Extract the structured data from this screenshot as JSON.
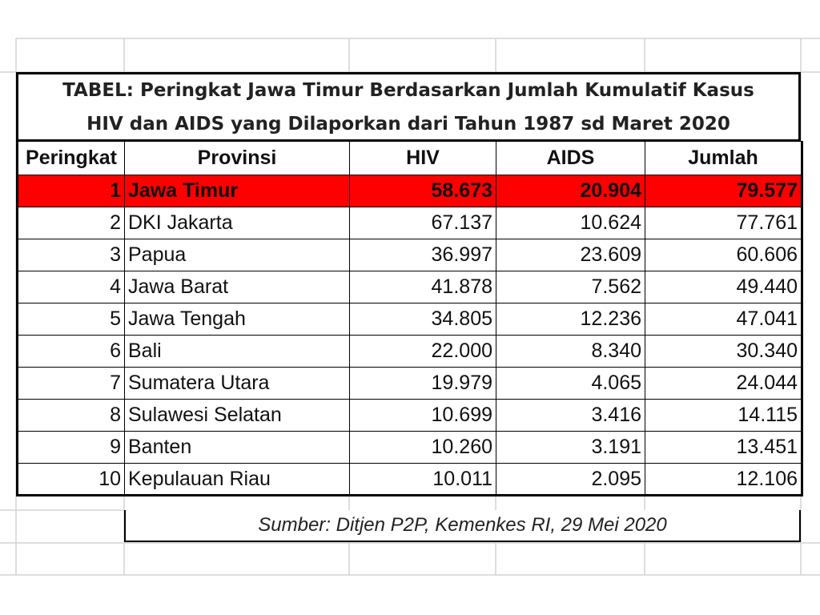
{
  "title": {
    "line1": "TABEL: Peringkat Jawa Timur Berdasarkan Jumlah Kumulatif Kasus",
    "line2": "HIV dan AIDS yang Dilaporkan dari Tahun 1987 sd Maret 2020"
  },
  "headers": [
    "Peringkat",
    "Provinsi",
    "HIV",
    "AIDS",
    "Jumlah"
  ],
  "rows": [
    {
      "rank": "1",
      "province": "Jawa Timur",
      "hiv": "58.673",
      "aids": "20.904",
      "total": "79.577"
    },
    {
      "rank": "2",
      "province": "DKI Jakarta",
      "hiv": "67.137",
      "aids": "10.624",
      "total": "77.761"
    },
    {
      "rank": "3",
      "province": "Papua",
      "hiv": "36.997",
      "aids": "23.609",
      "total": "60.606"
    },
    {
      "rank": "4",
      "province": "Jawa Barat",
      "hiv": "41.878",
      "aids": "7.562",
      "total": "49.440"
    },
    {
      "rank": "5",
      "province": "Jawa Tengah",
      "hiv": "34.805",
      "aids": "12.236",
      "total": "47.041"
    },
    {
      "rank": "6",
      "province": "Bali",
      "hiv": "22.000",
      "aids": "8.340",
      "total": "30.340"
    },
    {
      "rank": "7",
      "province": "Sumatera Utara",
      "hiv": "19.979",
      "aids": "4.065",
      "total": "24.044"
    },
    {
      "rank": "8",
      "province": "Sulawesi Selatan",
      "hiv": "10.699",
      "aids": "3.416",
      "total": "14.115"
    },
    {
      "rank": "9",
      "province": "Banten",
      "hiv": "10.260",
      "aids": "3.191",
      "total": "13.451"
    },
    {
      "rank": "10",
      "province": "Kepulauan Riau",
      "hiv": "10.011",
      "aids": "2.095",
      "total": "12.106"
    }
  ],
  "highlight_color": "#ff0000",
  "source": "Sumber: Ditjen P2P, Kemenkes RI, 29 Mei 2020"
}
